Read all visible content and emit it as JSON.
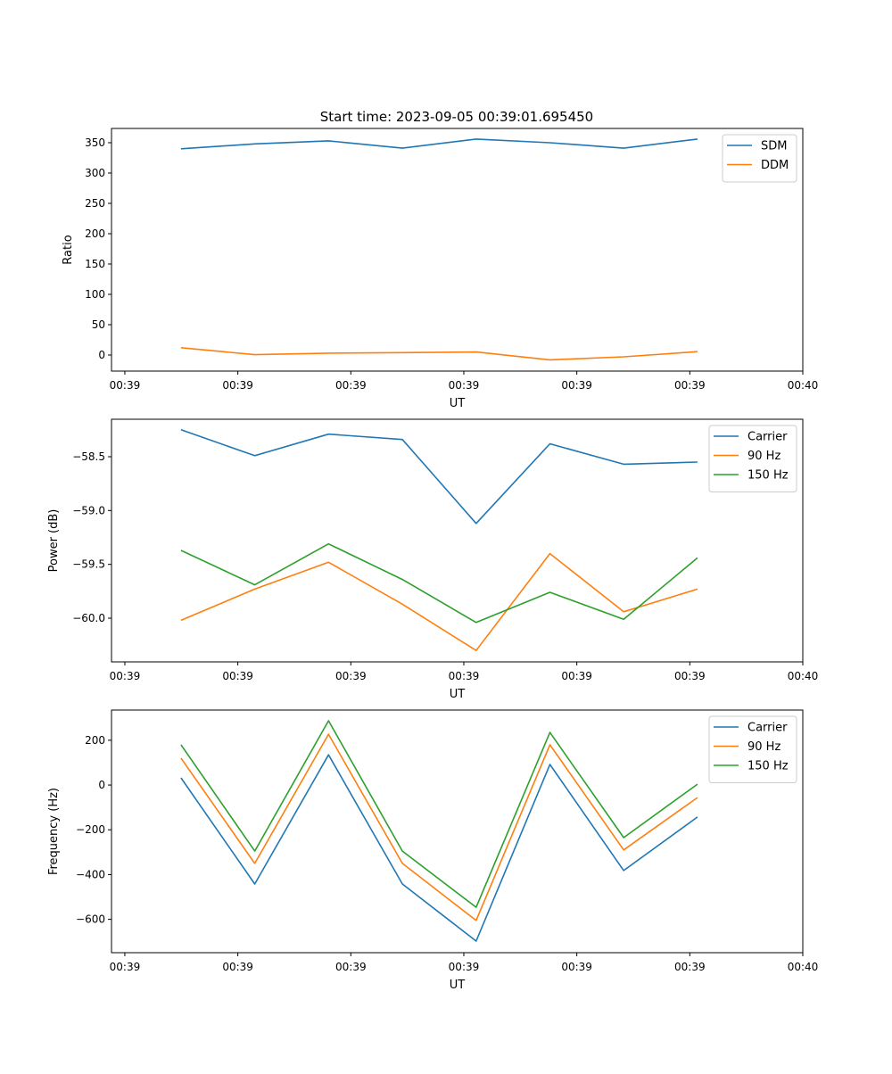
{
  "title": "Start time: 2023-09-05 00:39:01.695450",
  "colors": {
    "blue": "#1f77b4",
    "orange": "#ff7f0e",
    "green": "#2ca02c"
  },
  "chart_data": [
    {
      "type": "line",
      "xlabel": "UT",
      "ylabel": "Ratio",
      "xlim": [
        -1.18,
        60
      ],
      "ylim": [
        -26.5,
        373.5
      ],
      "xticks": [
        0,
        10,
        20,
        30,
        40,
        50,
        60
      ],
      "xtick_labels": [
        "00:39",
        "00:39",
        "00:39",
        "00:39",
        "00:39",
        "00:39",
        "00:40"
      ],
      "yticks": [
        0,
        50,
        100,
        150,
        200,
        250,
        300,
        350
      ],
      "ytick_labels": [
        "0",
        "50",
        "100",
        "150",
        "200",
        "250",
        "300",
        "350"
      ],
      "legend_position": "top-right",
      "x": [
        4.97,
        11.5,
        18.03,
        24.56,
        31.09,
        37.62,
        44.15,
        50.68
      ],
      "series": [
        {
          "name": "SDM",
          "color": "#1f77b4",
          "values": [
            340,
            348,
            353,
            341,
            356,
            350,
            341,
            356
          ]
        },
        {
          "name": "DDM",
          "color": "#ff7f0e",
          "values": [
            12,
            0.5,
            3,
            4,
            5,
            -8,
            -3,
            5.5
          ]
        }
      ]
    },
    {
      "type": "line",
      "xlabel": "UT",
      "ylabel": "Power (dB)",
      "xlim": [
        -1.18,
        60
      ],
      "ylim": [
        -60.406,
        -58.152
      ],
      "xticks": [
        0,
        10,
        20,
        30,
        40,
        50,
        60
      ],
      "xtick_labels": [
        "00:39",
        "00:39",
        "00:39",
        "00:39",
        "00:39",
        "00:39",
        "00:40"
      ],
      "yticks": [
        -60.0,
        -59.5,
        -59.0,
        -58.5
      ],
      "ytick_labels": [
        "−60.0",
        "−59.5",
        "−59.0",
        "−58.5"
      ],
      "legend_position": "top-right",
      "x": [
        4.97,
        11.5,
        18.03,
        24.56,
        31.09,
        37.62,
        44.15,
        50.68
      ],
      "series": [
        {
          "name": "Carrier",
          "color": "#1f77b4",
          "values": [
            -58.25,
            -58.49,
            -58.29,
            -58.34,
            -59.12,
            -58.38,
            -58.57,
            -58.55
          ]
        },
        {
          "name": "90 Hz",
          "color": "#ff7f0e",
          "values": [
            -60.02,
            -59.73,
            -59.48,
            -59.87,
            -60.3,
            -59.4,
            -59.94,
            -59.73
          ]
        },
        {
          "name": "150 Hz",
          "color": "#2ca02c",
          "values": [
            -59.37,
            -59.69,
            -59.31,
            -59.64,
            -60.04,
            -59.76,
            -60.01,
            -59.44
          ]
        }
      ]
    },
    {
      "type": "line",
      "xlabel": "UT",
      "ylabel": "Frequency (Hz)",
      "xlim": [
        -1.18,
        60
      ],
      "ylim": [
        -749,
        335
      ],
      "xticks": [
        0,
        10,
        20,
        30,
        40,
        50,
        60
      ],
      "xtick_labels": [
        "00:39",
        "00:39",
        "00:39",
        "00:39",
        "00:39",
        "00:39",
        "00:40"
      ],
      "yticks": [
        -600,
        -400,
        -200,
        0,
        200
      ],
      "ytick_labels": [
        "−600",
        "−400",
        "−200",
        "0",
        "200"
      ],
      "legend_position": "top-right",
      "x": [
        4.97,
        11.5,
        18.03,
        24.56,
        31.09,
        37.62,
        44.15,
        50.68
      ],
      "series": [
        {
          "name": "Carrier",
          "color": "#1f77b4",
          "values": [
            32,
            -442,
            135,
            -442,
            -697,
            92,
            -382,
            -143
          ]
        },
        {
          "name": "90 Hz",
          "color": "#ff7f0e",
          "values": [
            120,
            -350,
            227,
            -350,
            -605,
            180,
            -290,
            -56
          ]
        },
        {
          "name": "150 Hz",
          "color": "#2ca02c",
          "values": [
            180,
            -295,
            287,
            -295,
            -546,
            235,
            -235,
            4
          ]
        }
      ]
    }
  ]
}
